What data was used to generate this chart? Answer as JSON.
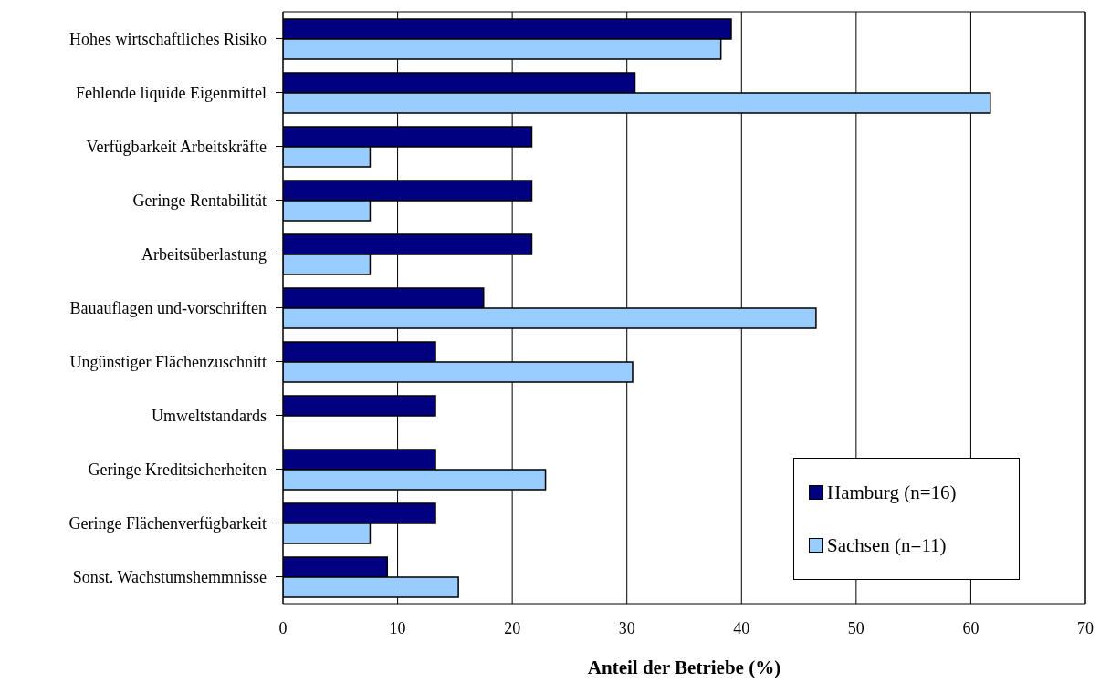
{
  "chart_data": {
    "type": "bar",
    "orientation": "horizontal",
    "xlabel": "Anteil der Betriebe (%)",
    "categories": [
      "Hohes wirtschaftliches Risiko",
      "Fehlende liquide Eigenmittel",
      "Verfügbarkeit Arbeitskräfte",
      "Geringe Rentabilität",
      "Arbeitsüberlastung",
      "Bauauflagen und-vorschriften",
      "Ungünstiger Flächenzuschnitt",
      "Umweltstandards",
      "Geringe Kreditsicherheiten",
      "Geringe Flächenverfügbarkeit",
      "Sonst. Wachstumshemmnisse"
    ],
    "series": [
      {
        "name": "Hamburg (n=16)",
        "color": "#000080",
        "values": [
          39.1,
          30.7,
          21.7,
          21.7,
          21.7,
          17.5,
          13.3,
          13.3,
          13.3,
          13.3,
          9.1
        ]
      },
      {
        "name": "Sachsen (n=11)",
        "color": "#99ccff",
        "values": [
          38.2,
          61.7,
          7.6,
          7.6,
          7.6,
          46.5,
          30.5,
          null,
          22.9,
          7.6,
          15.3
        ]
      }
    ],
    "xlim": [
      0,
      70
    ],
    "xticks": [
      0,
      10,
      20,
      30,
      40,
      50,
      60,
      70
    ],
    "grid": "x",
    "legend": "bottom right"
  }
}
